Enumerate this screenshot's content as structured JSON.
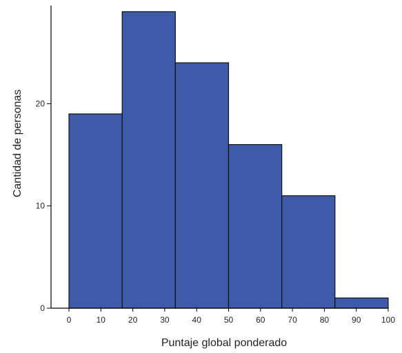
{
  "chart_data": {
    "type": "bar",
    "subtype": "histogram",
    "title": "",
    "xlabel": "Puntaje global ponderado",
    "ylabel": "Cantidad de personas",
    "bins": [
      {
        "start": 0,
        "end": 16.67,
        "value": 19
      },
      {
        "start": 16.67,
        "end": 33.33,
        "value": 29
      },
      {
        "start": 33.33,
        "end": 50,
        "value": 24
      },
      {
        "start": 50,
        "end": 66.67,
        "value": 16
      },
      {
        "start": 66.67,
        "end": 83.33,
        "value": 11
      },
      {
        "start": 83.33,
        "end": 100,
        "value": 1
      }
    ],
    "xlim": [
      -10,
      104
    ],
    "ylim": [
      0,
      29.6
    ],
    "x_ticks": [
      0,
      10,
      20,
      30,
      40,
      50,
      60,
      70,
      80,
      90,
      100
    ],
    "x_tick_labels": [
      "0",
      "10",
      "20",
      "30",
      "40",
      "50",
      "60",
      "70",
      "80",
      "90",
      "100"
    ],
    "y_ticks": [
      0,
      10,
      20
    ],
    "y_tick_labels": [
      "0",
      "10",
      "20"
    ],
    "grid": false,
    "legend": "none",
    "colors": {
      "bar_fill": "#3d5ba9",
      "bar_stroke": "#111111",
      "axis": "#000000",
      "text": "#222222"
    }
  }
}
